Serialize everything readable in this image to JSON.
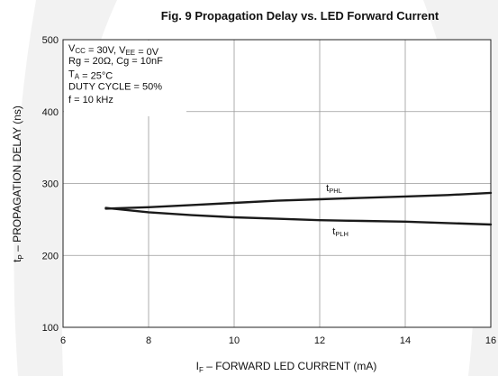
{
  "chart_data": {
    "type": "line",
    "title": "Fig. 9 Propagation Delay vs. LED Forward Current",
    "xlabel": {
      "main": "I",
      "sub": "F",
      "rest": " – FORWARD LED CURRENT (mA)"
    },
    "ylabel": {
      "main": "t",
      "sub": "P",
      "rest": " – PROPAGATION DELAY (ns)"
    },
    "xlim": [
      6,
      16
    ],
    "ylim": [
      100,
      500
    ],
    "xticks": [
      6,
      8,
      10,
      12,
      14,
      16
    ],
    "yticks": [
      100,
      200,
      300,
      400,
      500
    ],
    "grid": true,
    "conditions": [
      {
        "parts": [
          {
            "t": "V"
          },
          {
            "t": "CC",
            "sub": true
          },
          {
            "t": " = 30V, V"
          },
          {
            "t": "EE",
            "sub": true
          },
          {
            "t": " = 0V"
          }
        ]
      },
      {
        "parts": [
          {
            "t": "Rg = 20Ω, Cg = 10nF"
          }
        ]
      },
      {
        "parts": [
          {
            "t": "T"
          },
          {
            "t": "A",
            "sub": true
          },
          {
            "t": " = 25°C"
          }
        ]
      },
      {
        "parts": [
          {
            "t": "DUTY CYCLE = 50%"
          }
        ]
      },
      {
        "parts": [
          {
            "t": "f = 10 kHz"
          }
        ]
      }
    ],
    "series": [
      {
        "name": "tPHL",
        "label_main": "t",
        "label_sub": "PHL",
        "x": [
          7,
          8,
          9,
          10,
          11,
          12,
          13,
          14,
          15,
          16
        ],
        "y": [
          265,
          267,
          270,
          273,
          276,
          278,
          280,
          282,
          284,
          287
        ]
      },
      {
        "name": "tPLH",
        "label_main": "t",
        "label_sub": "PLH",
        "x": [
          7,
          8,
          9,
          10,
          11,
          12,
          13,
          14,
          15,
          16
        ],
        "y": [
          266,
          260,
          256,
          253,
          251,
          249,
          248,
          247,
          245,
          243
        ]
      }
    ]
  }
}
